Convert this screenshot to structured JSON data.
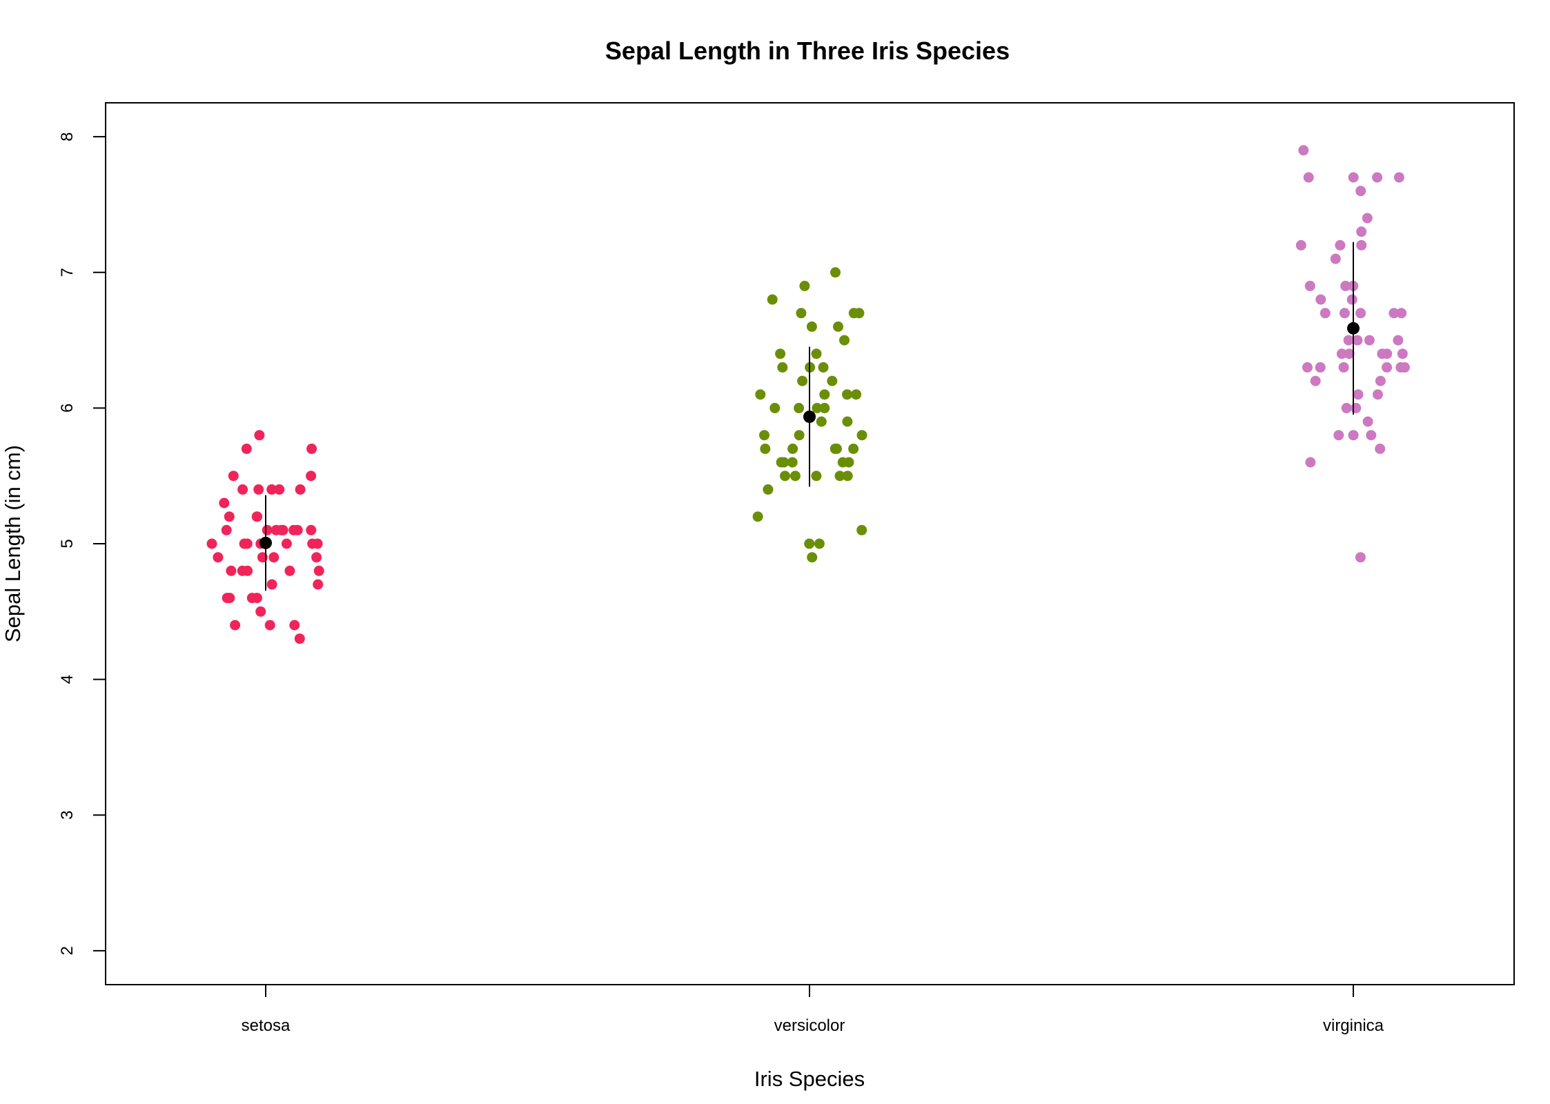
{
  "chart_data": {
    "type": "scatter",
    "title": "Sepal Length in Three Iris Species",
    "xlabel": "Iris Species",
    "ylabel": "Sepal Length (in cm)",
    "categories": [
      "setosa",
      "versicolor",
      "virginica"
    ],
    "y_ticks": [
      "2",
      "3",
      "4",
      "5",
      "6",
      "7",
      "8"
    ],
    "ylim": [
      1.75,
      8.25
    ],
    "grid": false,
    "colors": {
      "setosa": "#f0245a",
      "versicolor": "#6b8e07",
      "virginica": "#cc79c1",
      "mean": "#000000",
      "axis": "#000000"
    },
    "series": [
      {
        "values": [
          5.1,
          4.9,
          4.7,
          4.6,
          5.0,
          5.4,
          4.6,
          5.0,
          4.4,
          4.9,
          5.4,
          4.8,
          4.8,
          4.3,
          5.8,
          5.7,
          5.4,
          5.1,
          5.7,
          5.1,
          5.4,
          5.1,
          4.6,
          5.1,
          4.8,
          5.0,
          5.0,
          5.2,
          5.2,
          4.7,
          4.8,
          5.4,
          5.2,
          5.5,
          4.9,
          5.0,
          5.5,
          4.9,
          4.4,
          5.1,
          5.0,
          4.5,
          4.4,
          5.0,
          5.1,
          4.8,
          5.1,
          4.6,
          5.3,
          5.0
        ],
        "mean": 5.006,
        "sd": 0.352
      },
      {
        "values": [
          7.0,
          6.4,
          6.9,
          5.5,
          6.5,
          5.7,
          6.3,
          4.9,
          6.6,
          5.2,
          5.0,
          5.9,
          6.0,
          6.1,
          5.6,
          6.7,
          5.6,
          5.8,
          6.2,
          5.6,
          5.9,
          6.1,
          6.3,
          6.1,
          6.4,
          6.6,
          6.8,
          6.7,
          6.0,
          5.7,
          5.5,
          5.5,
          5.8,
          6.0,
          5.4,
          6.0,
          6.7,
          6.3,
          5.6,
          5.5,
          5.5,
          6.1,
          5.8,
          5.0,
          5.6,
          5.7,
          5.7,
          6.2,
          5.1,
          5.7
        ],
        "mean": 5.936,
        "sd": 0.516
      },
      {
        "values": [
          6.3,
          5.8,
          7.1,
          6.3,
          6.5,
          7.6,
          4.9,
          7.3,
          6.7,
          7.2,
          6.5,
          6.4,
          6.8,
          5.7,
          5.8,
          6.4,
          6.5,
          7.7,
          7.7,
          6.0,
          6.9,
          5.6,
          7.7,
          6.3,
          6.7,
          7.2,
          6.2,
          6.1,
          6.4,
          7.2,
          7.4,
          7.9,
          6.4,
          6.3,
          6.1,
          7.7,
          6.3,
          6.4,
          6.0,
          6.9,
          6.7,
          6.9,
          5.8,
          6.8,
          6.7,
          6.7,
          6.3,
          6.5,
          6.2,
          5.9
        ],
        "mean": 6.588,
        "sd": 0.636
      }
    ]
  }
}
